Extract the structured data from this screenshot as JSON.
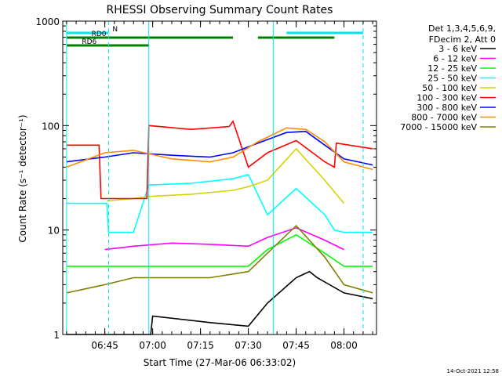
{
  "chart_data": {
    "type": "line",
    "title": "RHESSI Observing Summary Count Rates",
    "xlabel": "Start Time (27-Mar-06 06:33:02)",
    "ylabel": "Count Rate (s⁻¹ detector⁻¹)",
    "yscale": "log",
    "ylim": [
      1,
      1000
    ],
    "y_ticks": [
      "1",
      "10",
      "100",
      "1000"
    ],
    "xlim_minutes": [
      6.53,
      8.17
    ],
    "x_ticks": [
      {
        "label": "06:45",
        "value": 6.75
      },
      {
        "label": "07:00",
        "value": 7.0
      },
      {
        "label": "07:15",
        "value": 7.25
      },
      {
        "label": "07:30",
        "value": 7.5
      },
      {
        "label": "07:45",
        "value": 7.75
      },
      {
        "label": "08:00",
        "value": 8.0
      }
    ],
    "legend_header": [
      "Det 1,3,4,5,6,9,",
      "FDecim 2, Att 0"
    ],
    "legend_placement": "right",
    "timestamp": "14-Oct-2021 12:58",
    "flags": [
      {
        "label": "N",
        "color": "#00e5ee",
        "segments": [
          [
            6.55,
            6.77
          ],
          [
            7.7,
            8.1
          ]
        ]
      },
      {
        "label": "RD0",
        "color": "#007f00",
        "segments": [
          [
            6.55,
            7.42
          ],
          [
            7.55,
            7.95
          ]
        ]
      },
      {
        "label": "RD6",
        "color": "#007f00",
        "segments": [
          [
            6.55,
            6.98
          ]
        ]
      }
    ],
    "cyan_lines": [
      6.55,
      6.98,
      7.63
    ],
    "cyan_dashed": [
      6.77,
      8.1
    ],
    "series": [
      {
        "name": "3 - 6 keV",
        "color": "#000000",
        "x": [
          6.55,
          6.99,
          7.0,
          7.3,
          7.5,
          7.6,
          7.75,
          7.82,
          7.86,
          8.0,
          8.15
        ],
        "y": [
          1.0,
          1.0,
          1.5,
          1.3,
          1.2,
          2.0,
          3.5,
          4.0,
          3.5,
          2.5,
          2.2
        ]
      },
      {
        "name": "6 - 12 keV",
        "color": "#ff00ff",
        "x": [
          6.75,
          6.9,
          7.1,
          7.3,
          7.5,
          7.6,
          7.75,
          7.9,
          8.0
        ],
        "y": [
          6.5,
          7.0,
          7.5,
          7.3,
          7.0,
          8.5,
          10.5,
          8.0,
          6.5
        ]
      },
      {
        "name": "12 - 25 keV",
        "color": "#00ff00",
        "x": [
          6.55,
          6.9,
          7.1,
          7.3,
          7.5,
          7.6,
          7.75,
          7.9,
          8.0,
          8.15
        ],
        "y": [
          4.5,
          4.5,
          4.5,
          4.5,
          4.5,
          6.5,
          9.0,
          6.0,
          4.5,
          4.5
        ]
      },
      {
        "name": "25 - 50 keV",
        "color": "#00ffff",
        "x": [
          6.55,
          6.76,
          6.77,
          6.9,
          6.98,
          7.2,
          7.42,
          7.5,
          7.6,
          7.75,
          7.9,
          7.95,
          8.0,
          8.15
        ],
        "y": [
          18,
          18,
          9.5,
          9.5,
          27,
          28,
          31,
          34,
          14,
          25,
          14,
          10,
          9.5,
          9.5
        ]
      },
      {
        "name": "50 - 100 keV",
        "color": "#d4d400",
        "x": [
          6.76,
          6.9,
          6.98,
          7.2,
          7.42,
          7.5,
          7.6,
          7.75,
          7.9,
          8.0
        ],
        "y": [
          19,
          20,
          21,
          22,
          24,
          26,
          30,
          60,
          30,
          18
        ]
      },
      {
        "name": "100 - 300 keV",
        "color": "#ff0000",
        "x": [
          6.55,
          6.72,
          6.73,
          6.97,
          6.98,
          7.2,
          7.4,
          7.42,
          7.5,
          7.6,
          7.75,
          7.9,
          7.95,
          7.96,
          8.15
        ],
        "y": [
          65,
          65,
          20,
          20,
          100,
          92,
          98,
          110,
          40,
          55,
          72,
          45,
          40,
          68,
          60
        ]
      },
      {
        "name": "300 - 800 keV",
        "color": "#0000ff",
        "x": [
          6.55,
          6.75,
          6.9,
          7.1,
          7.3,
          7.42,
          7.55,
          7.7,
          7.8,
          7.9,
          8.0,
          8.15
        ],
        "y": [
          45,
          50,
          55,
          52,
          50,
          55,
          68,
          86,
          88,
          65,
          48,
          42
        ]
      },
      {
        "name": "800 - 7000 keV",
        "color": "#ff8c00",
        "x": [
          6.55,
          6.75,
          6.9,
          7.1,
          7.3,
          7.42,
          7.55,
          7.7,
          7.8,
          7.9,
          8.0,
          8.15
        ],
        "y": [
          40,
          55,
          58,
          48,
          45,
          50,
          70,
          95,
          92,
          70,
          45,
          38
        ]
      },
      {
        "name": "7000 - 15000 keV",
        "color": "#808000",
        "x": [
          6.55,
          6.75,
          6.9,
          7.1,
          7.3,
          7.5,
          7.6,
          7.75,
          7.9,
          8.0,
          8.15
        ],
        "y": [
          2.5,
          3.0,
          3.5,
          3.5,
          3.5,
          4.0,
          6.0,
          11,
          5.5,
          3.0,
          2.5
        ]
      }
    ]
  }
}
